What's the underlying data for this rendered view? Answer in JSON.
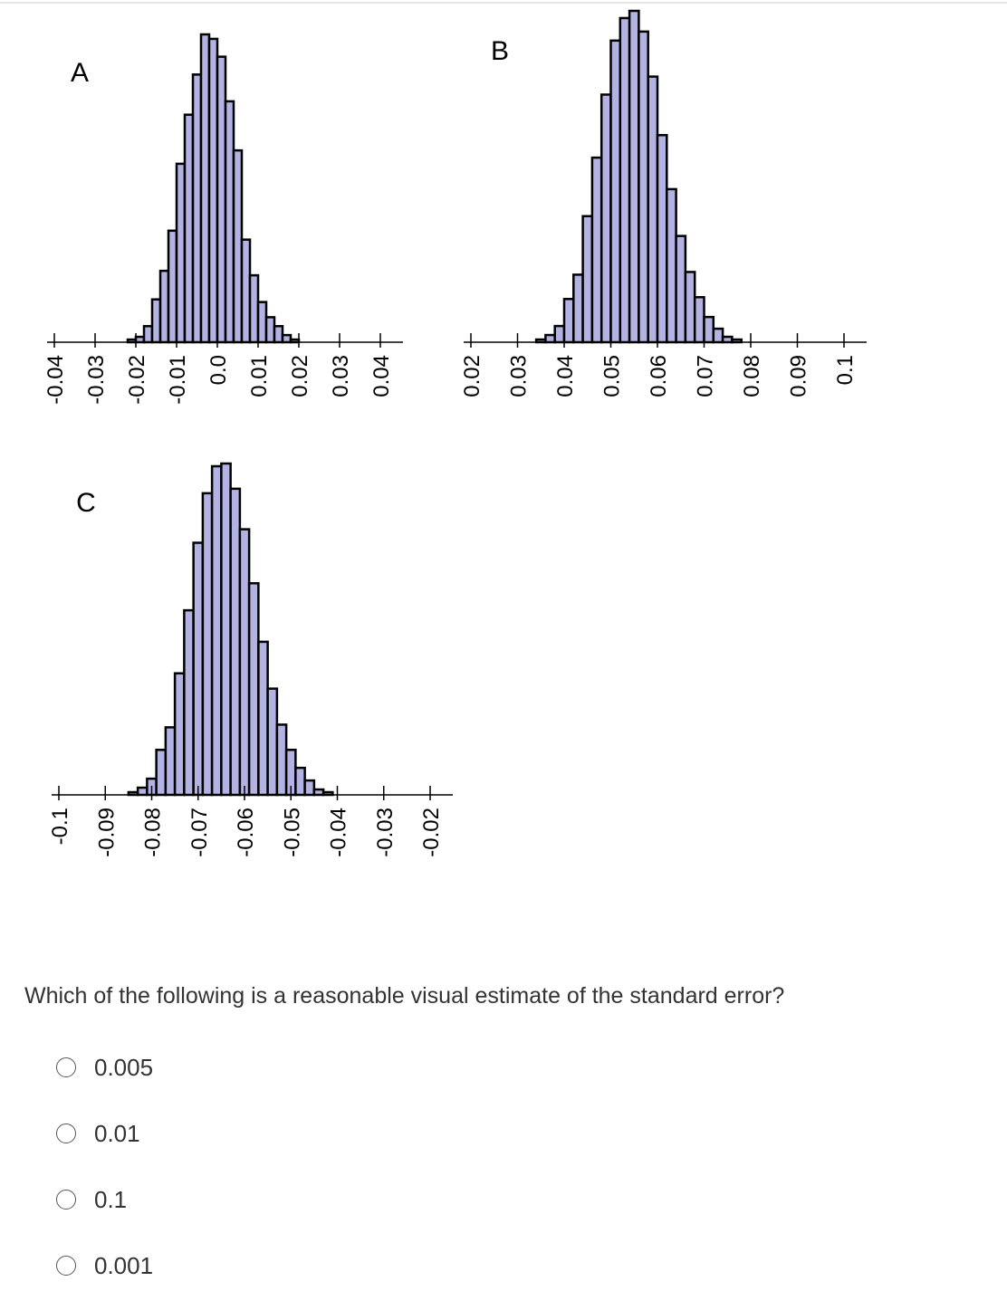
{
  "question": {
    "text": "Which of the following is a reasonable visual estimate of the standard error?",
    "options": [
      {
        "label": "0.005",
        "selected": false
      },
      {
        "label": "0.01",
        "selected": false
      },
      {
        "label": "0.1",
        "selected": false
      },
      {
        "label": "0.001",
        "selected": false
      }
    ]
  },
  "colors": {
    "bar_fill": "#b3b3e3",
    "bar_stroke": "#000000",
    "axis": "#000000"
  },
  "chart_data": [
    {
      "type": "bar",
      "label": "A",
      "bin_width": 0.002,
      "x_start": -0.022,
      "counts": [
        3,
        6,
        18,
        48,
        80,
        125,
        200,
        255,
        300,
        345,
        340,
        320,
        270,
        215,
        115,
        75,
        45,
        28,
        18,
        8,
        3
      ],
      "xlim": [
        -0.04,
        0.04
      ],
      "ticks": [
        -0.04,
        -0.03,
        -0.02,
        -0.01,
        0.0,
        0.01,
        0.02,
        0.03,
        0.04
      ],
      "tick_labels": [
        "-0.04",
        "-0.03",
        "-0.02",
        "-0.01",
        "0.0",
        "0.01",
        "0.02",
        "0.03",
        "0.04"
      ],
      "grid": false
    },
    {
      "type": "bar",
      "label": "B",
      "bin_width": 0.002,
      "x_start": 0.034,
      "counts": [
        3,
        8,
        18,
        48,
        75,
        140,
        205,
        275,
        335,
        360,
        368,
        345,
        295,
        230,
        170,
        118,
        78,
        50,
        28,
        15,
        6,
        3
      ],
      "xlim": [
        0.02,
        0.1
      ],
      "ticks": [
        0.02,
        0.03,
        0.04,
        0.05,
        0.06,
        0.07,
        0.08,
        0.09,
        0.1
      ],
      "tick_labels": [
        "0.02",
        "0.03",
        "0.04",
        "0.05",
        "0.06",
        "0.07",
        "0.08",
        "0.09",
        "0.1"
      ],
      "grid": false
    },
    {
      "type": "bar",
      "label": "C",
      "bin_width": 0.002,
      "x_start": -0.085,
      "counts": [
        3,
        8,
        18,
        50,
        75,
        135,
        205,
        280,
        335,
        365,
        368,
        340,
        295,
        235,
        170,
        118,
        78,
        50,
        30,
        16,
        6,
        3
      ],
      "xlim": [
        -0.1,
        -0.02
      ],
      "ticks": [
        -0.1,
        -0.09,
        -0.08,
        -0.07,
        -0.06,
        -0.05,
        -0.04,
        -0.03,
        -0.02
      ],
      "tick_labels": [
        "-0.1",
        "-0.09",
        "-0.08",
        "-0.07",
        "-0.06",
        "-0.05",
        "-0.04",
        "-0.03",
        "-0.02"
      ],
      "grid": false
    }
  ]
}
